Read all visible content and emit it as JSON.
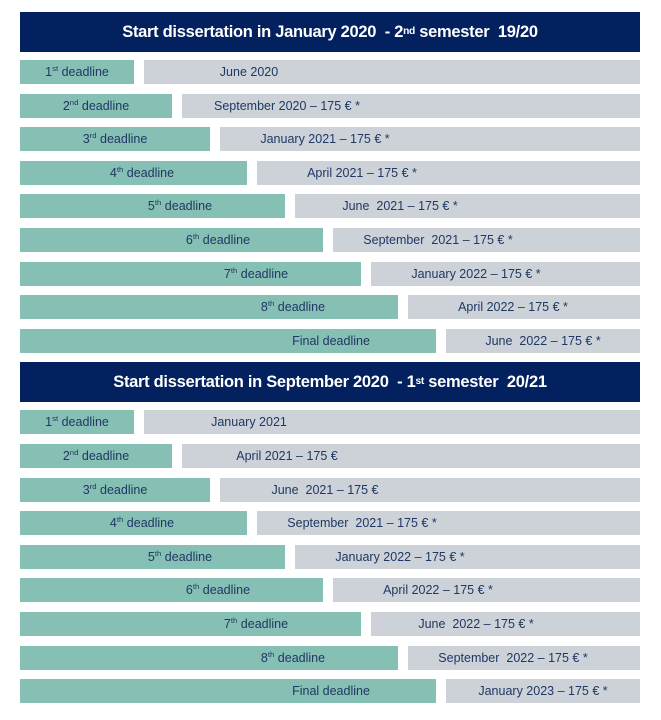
{
  "colors": {
    "header_bg": "#02215E",
    "header_text": "#FFFFFF",
    "deadline_bar": "#86BFB3",
    "date_bar": "#CCD2D8",
    "bar_text": "#1F3864"
  },
  "sections": [
    {
      "header": {
        "text_before_sup": "Start dissertation in January 2020  - 2",
        "sup": "nd",
        "text_after_sup": " semester  19/20"
      },
      "rows": [
        {
          "label_num": "1",
          "label_sup": "st",
          "label_rest": " deadline",
          "date": "June 2020"
        },
        {
          "label_num": "2",
          "label_sup": "nd",
          "label_rest": " deadline",
          "date": "September 2020 – 175 € *"
        },
        {
          "label_num": "3",
          "label_sup": "rd",
          "label_rest": " deadline",
          "date": "January 2021 – 175 € *"
        },
        {
          "label_num": "4",
          "label_sup": "th",
          "label_rest": " deadline",
          "date": "April 2021 – 175 € *"
        },
        {
          "label_num": "5",
          "label_sup": "th",
          "label_rest": " deadline",
          "date": "June  2021 – 175 € *"
        },
        {
          "label_num": "6",
          "label_sup": "th",
          "label_rest": " deadline",
          "date": "September  2021 – 175 € *"
        },
        {
          "label_num": "7",
          "label_sup": "th",
          "label_rest": " deadline",
          "date": "January 2022 – 175 € *"
        },
        {
          "label_num": "8",
          "label_sup": "th",
          "label_rest": " deadline",
          "date": "April 2022 – 175 € *"
        },
        {
          "label_num": "Final",
          "label_sup": "",
          "label_rest": " deadline",
          "date": "June  2022 – 175 € *"
        }
      ]
    },
    {
      "header": {
        "text_before_sup": "Start dissertation in September 2020  - 1",
        "sup": "st",
        "text_after_sup": " semester  20/21"
      },
      "rows": [
        {
          "label_num": "1",
          "label_sup": "st",
          "label_rest": " deadline",
          "date": "January 2021"
        },
        {
          "label_num": "2",
          "label_sup": "nd",
          "label_rest": " deadline",
          "date": "April 2021 – 175 €"
        },
        {
          "label_num": "3",
          "label_sup": "rd",
          "label_rest": " deadline",
          "date": "June  2021 – 175 €"
        },
        {
          "label_num": "4",
          "label_sup": "th",
          "label_rest": " deadline",
          "date": "September  2021 – 175 € *"
        },
        {
          "label_num": "5",
          "label_sup": "th",
          "label_rest": " deadline",
          "date": "January 2022 – 175 € *"
        },
        {
          "label_num": "6",
          "label_sup": "th",
          "label_rest": " deadline",
          "date": "April 2022 – 175 € *"
        },
        {
          "label_num": "7",
          "label_sup": "th",
          "label_rest": " deadline",
          "date": "June  2022 – 175 € *"
        },
        {
          "label_num": "8",
          "label_sup": "th",
          "label_rest": " deadline",
          "date": "September  2022 – 175 € *"
        },
        {
          "label_num": "Final",
          "label_sup": "",
          "label_rest": " deadline",
          "date": "January 2023 – 175 € *"
        }
      ]
    }
  ]
}
